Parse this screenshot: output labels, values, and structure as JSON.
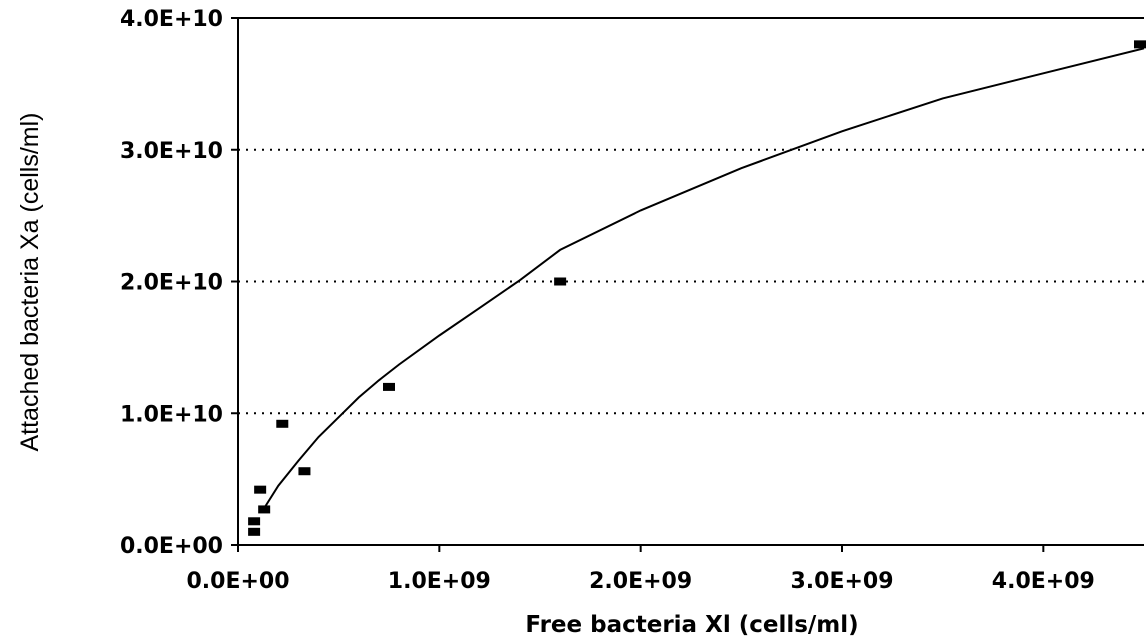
{
  "chart_data": {
    "type": "scatter",
    "title": "",
    "xlabel": "Free bacteria Xl (cells/ml)",
    "ylabel": "Attached bacteria Xa (cells/ml)",
    "xlim": [
      0,
      4500000000
    ],
    "ylim": [
      0,
      40000000000
    ],
    "x_ticks": [
      {
        "value": 0,
        "label": "0.0E+00"
      },
      {
        "value": 1000000000,
        "label": "1.0E+09"
      },
      {
        "value": 2000000000,
        "label": "2.0E+09"
      },
      {
        "value": 3000000000,
        "label": "3.0E+09"
      },
      {
        "value": 4000000000,
        "label": "4.0E+09"
      }
    ],
    "y_ticks": [
      {
        "value": 0,
        "label": "0.0E+00"
      },
      {
        "value": 10000000000,
        "label": "1.0E+10"
      },
      {
        "value": 20000000000,
        "label": "2.0E+10"
      },
      {
        "value": 30000000000,
        "label": "3.0E+10"
      },
      {
        "value": 40000000000,
        "label": "4.0E+10"
      }
    ],
    "grid": "horizontal dotted",
    "legend": "none",
    "series": [
      {
        "kind": "points",
        "x": [
          80000000,
          80000000,
          110000000,
          130000000,
          220000000,
          330000000,
          750000000,
          1600000000,
          4500000000
        ],
        "y": [
          1000000000,
          1800000000,
          4200000000,
          2700000000,
          9200000000,
          5600000000,
          12000000000,
          20000000000,
          38000000000
        ]
      },
      {
        "kind": "fitted-curve",
        "x": [
          130000000,
          200000000,
          300000000,
          400000000,
          500000000,
          600000000,
          700000000,
          800000000,
          1000000000,
          1200000000,
          1400000000,
          1600000000,
          2000000000,
          2500000000,
          3000000000,
          3500000000,
          4000000000,
          4500000000
        ],
        "y": [
          2800000000,
          4500000000,
          6400000000,
          8200000000,
          9700000000,
          11200000000,
          12500000000,
          13700000000,
          15900000000,
          18000000000,
          20100000000,
          22400000000,
          25400000000,
          28600000000,
          31400000000,
          33900000000,
          35800000000,
          37700000000
        ]
      }
    ]
  }
}
